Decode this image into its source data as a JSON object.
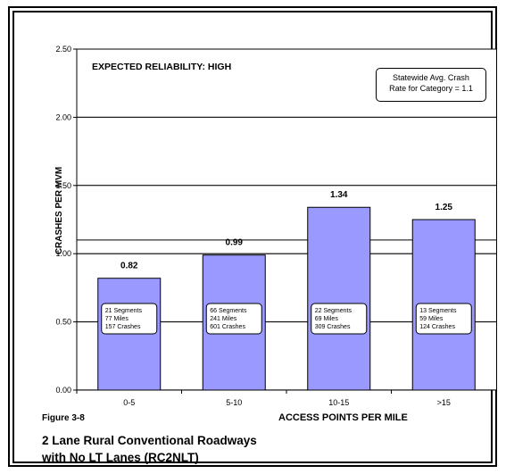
{
  "chart_data": {
    "type": "bar",
    "categories": [
      "0-5",
      "5-10",
      "10-15",
      ">15"
    ],
    "values": [
      0.82,
      0.99,
      1.34,
      1.25
    ],
    "value_labels": [
      "0.82",
      "0.99",
      "1.34",
      "1.25"
    ],
    "segment_notes": [
      [
        "21 Segments",
        "77 Miles",
        "157 Crashes"
      ],
      [
        "66 Segments",
        "241 Miles",
        "601 Crashes"
      ],
      [
        "22 Segments",
        "69 Miles",
        "309 Crashes"
      ],
      [
        "13 Segments",
        "59 Miles",
        "124 Crashes"
      ]
    ],
    "ylabel": "CRASHES PER MVM",
    "xlabel": "ACCESS POINTS PER MILE",
    "ylim": [
      0,
      2.5
    ],
    "yticks": [
      "0.00",
      "0.50",
      "1.00",
      "1.50",
      "2.00",
      "2.50"
    ],
    "reference_line": 1.1,
    "grid": true,
    "bar_color": "#9999ff",
    "plot_background": "#c0c0c0"
  },
  "annotations": {
    "reliability": "EXPECTED RELIABILITY:  HIGH",
    "statewide_line1": "Statewide Avg. Crash",
    "statewide_line2": "Rate for Category = 1.1"
  },
  "figure": {
    "number": "Figure 3-8",
    "caption_line1": "2 Lane Rural Conventional Roadways",
    "caption_line2": "with No LT Lanes (RC2NLT)"
  }
}
